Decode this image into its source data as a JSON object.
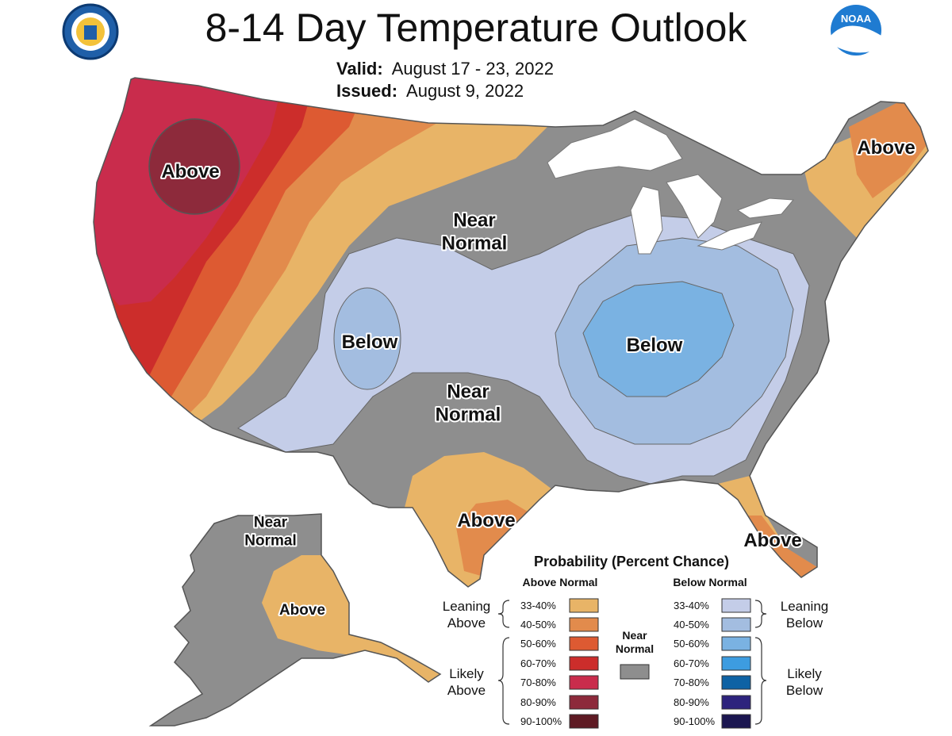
{
  "title": "8-14 Day Temperature Outlook",
  "valid_label": "Valid:",
  "valid_value": "August 17 - 23, 2022",
  "issued_label": "Issued:",
  "issued_value": "August 9, 2022",
  "seal_icon": "department-of-commerce-seal-icon",
  "noaa_logo": "noaa-logo-icon",
  "regions": [
    {
      "id": "northwest-above",
      "label": "Above"
    },
    {
      "id": "northeast-above",
      "label": "Above"
    },
    {
      "id": "plains-near-normal",
      "label": "Near Normal"
    },
    {
      "id": "rockies-below",
      "label": "Below"
    },
    {
      "id": "ohio-valley-below",
      "label": "Below"
    },
    {
      "id": "southwest-near-normal",
      "label": "Near Normal"
    },
    {
      "id": "texas-above",
      "label": "Above"
    },
    {
      "id": "florida-above",
      "label": "Above"
    },
    {
      "id": "alaska-near-normal",
      "label": "Near Normal"
    },
    {
      "id": "alaska-above",
      "label": "Above"
    }
  ],
  "legend": {
    "title": "Probability (Percent Chance)",
    "above_header": "Above Normal",
    "below_header": "Below Normal",
    "near_normal_label": "Near Normal",
    "near_normal_color": "#8e8e8e",
    "leaning_above": "Leaning Above",
    "likely_above": "Likely Above",
    "leaning_below": "Leaning Below",
    "likely_below": "Likely Below",
    "above": [
      {
        "range": "33-40%",
        "color": "#e8b467"
      },
      {
        "range": "40-50%",
        "color": "#e28b4c"
      },
      {
        "range": "50-60%",
        "color": "#dd5a32"
      },
      {
        "range": "60-70%",
        "color": "#cc2d2b"
      },
      {
        "range": "70-80%",
        "color": "#c92c4c"
      },
      {
        "range": "80-90%",
        "color": "#8d2a3b"
      },
      {
        "range": "90-100%",
        "color": "#5e1a23"
      }
    ],
    "below": [
      {
        "range": "33-40%",
        "color": "#c4cde8"
      },
      {
        "range": "40-50%",
        "color": "#a3bde0"
      },
      {
        "range": "50-60%",
        "color": "#7ab2e2"
      },
      {
        "range": "60-70%",
        "color": "#3d9ce0"
      },
      {
        "range": "70-80%",
        "color": "#0e62a4"
      },
      {
        "range": "80-90%",
        "color": "#2d237d"
      },
      {
        "range": "90-100%",
        "color": "#1b1650"
      }
    ]
  }
}
